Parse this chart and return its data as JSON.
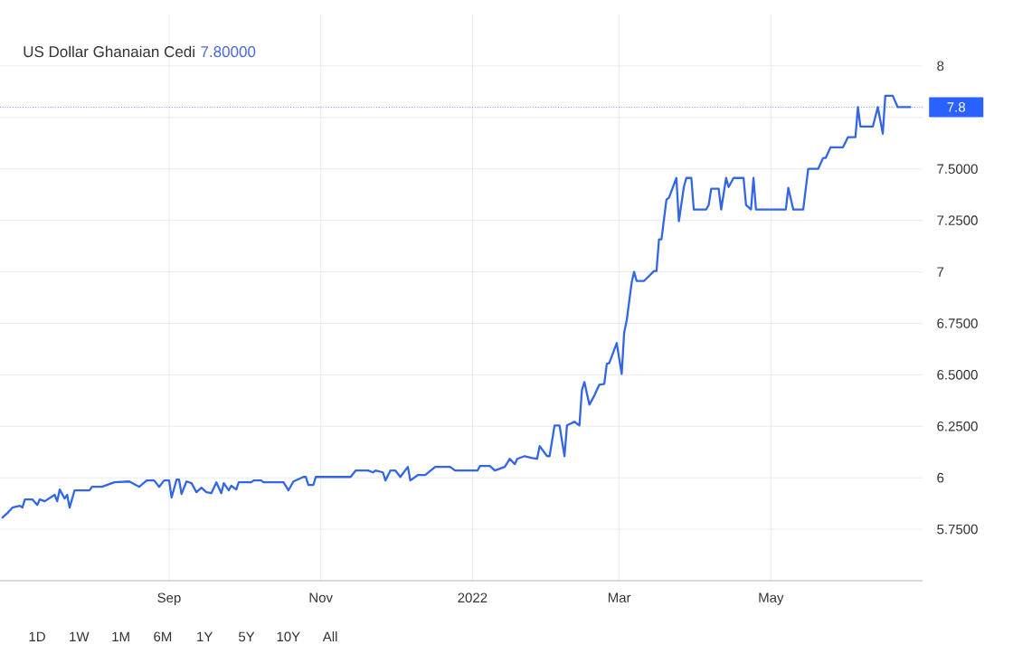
{
  "chart_data": {
    "type": "line",
    "title": "US Dollar Ghanaian Cedi",
    "subtitle": "7.80000",
    "annotations": [
      "1D",
      "1W",
      "1M",
      "6M",
      "1Y",
      "5Y",
      "10Y",
      "All"
    ],
    "x": [
      "2021-06-26",
      "2021-06-28",
      "2021-06-30",
      "2021-07-03",
      "2021-07-04",
      "2021-07-05",
      "2021-07-08",
      "2021-07-10",
      "2021-07-11",
      "2021-07-13",
      "2021-07-17",
      "2021-07-18",
      "2021-07-19",
      "2021-07-21",
      "2021-07-22",
      "2021-07-23",
      "2021-07-25",
      "2021-07-31",
      "2021-08-01",
      "2021-08-05",
      "2021-08-10",
      "2021-08-16",
      "2021-08-20",
      "2021-08-23",
      "2021-08-26",
      "2021-08-28",
      "2021-08-30",
      "2021-09-01",
      "2021-09-02",
      "2021-09-04",
      "2021-09-05",
      "2021-09-06",
      "2021-09-08",
      "2021-09-10",
      "2021-09-12",
      "2021-09-14",
      "2021-09-16",
      "2021-09-18",
      "2021-09-20",
      "2021-09-22",
      "2021-09-23",
      "2021-09-25",
      "2021-09-26",
      "2021-09-28",
      "2021-09-29",
      "2021-10-04",
      "2021-10-05",
      "2021-10-08",
      "2021-10-09",
      "2021-10-17",
      "2021-10-19",
      "2021-10-21",
      "2021-10-25",
      "2021-10-26",
      "2021-10-27",
      "2021-10-29",
      "2021-10-30",
      "2021-11-13",
      "2021-11-15",
      "2021-11-20",
      "2021-11-22",
      "2021-11-23",
      "2021-11-26",
      "2021-11-27",
      "2021-11-29",
      "2021-12-01",
      "2021-12-03",
      "2021-12-06",
      "2021-12-07",
      "2021-12-10",
      "2021-12-13",
      "2021-12-17",
      "2021-12-23",
      "2021-12-25",
      "2022-01-03",
      "2022-01-04",
      "2022-01-08",
      "2022-01-10",
      "2022-01-14",
      "2022-01-16",
      "2022-01-18",
      "2022-01-19",
      "2022-01-22",
      "2022-01-25",
      "2022-01-27",
      "2022-01-28",
      "2022-01-31",
      "2022-02-01",
      "2022-02-03",
      "2022-02-05",
      "2022-02-07",
      "2022-02-08",
      "2022-02-11",
      "2022-02-13",
      "2022-02-14",
      "2022-02-15",
      "2022-02-17",
      "2022-02-19",
      "2022-02-21",
      "2022-02-23",
      "2022-02-24",
      "2022-02-25",
      "2022-02-28",
      "2022-03-02",
      "2022-03-03",
      "2022-03-04",
      "2022-03-06",
      "2022-03-07",
      "2022-03-08",
      "2022-03-11",
      "2022-03-15",
      "2022-03-16",
      "2022-03-17",
      "2022-03-18",
      "2022-03-20",
      "2022-03-21",
      "2022-03-24",
      "2022-03-25",
      "2022-03-27",
      "2022-03-28",
      "2022-03-30",
      "2022-03-31",
      "2022-04-05",
      "2022-04-06",
      "2022-04-07",
      "2022-04-10",
      "2022-04-11",
      "2022-04-13",
      "2022-04-14",
      "2022-04-16",
      "2022-04-20",
      "2022-04-21",
      "2022-04-23",
      "2022-04-24",
      "2022-04-25",
      "2022-05-07",
      "2022-05-08",
      "2022-05-10",
      "2022-05-14",
      "2022-05-16",
      "2022-05-20",
      "2022-05-22",
      "2022-05-23",
      "2022-05-25",
      "2022-05-30",
      "2022-06-01",
      "2022-06-04",
      "2022-06-05",
      "2022-06-06",
      "2022-06-11",
      "2022-06-13",
      "2022-06-15",
      "2022-06-16",
      "2022-06-19",
      "2022-06-21",
      "2022-06-26"
    ],
    "values": [
      5.807,
      5.829,
      5.855,
      5.864,
      5.855,
      5.895,
      5.895,
      5.868,
      5.895,
      5.886,
      5.917,
      5.886,
      5.943,
      5.899,
      5.917,
      5.855,
      5.939,
      5.939,
      5.956,
      5.956,
      5.978,
      5.982,
      5.956,
      5.987,
      5.987,
      5.956,
      5.987,
      5.987,
      5.904,
      5.991,
      5.991,
      5.921,
      5.982,
      5.974,
      5.93,
      5.952,
      5.93,
      5.925,
      5.978,
      5.925,
      5.974,
      5.939,
      5.961,
      5.943,
      5.978,
      5.978,
      5.987,
      5.987,
      5.978,
      5.978,
      5.939,
      5.982,
      6.004,
      6.004,
      5.965,
      5.965,
      6.004,
      6.004,
      6.035,
      6.035,
      6.026,
      6.035,
      6.026,
      5.987,
      6.035,
      6.035,
      6.004,
      6.053,
      5.987,
      6.013,
      6.013,
      6.053,
      6.053,
      6.035,
      6.035,
      6.057,
      6.057,
      6.035,
      6.053,
      6.092,
      6.066,
      6.092,
      6.105,
      6.096,
      6.092,
      6.154,
      6.105,
      6.105,
      6.254,
      6.254,
      6.105,
      6.254,
      6.272,
      6.254,
      6.425,
      6.465,
      6.355,
      6.399,
      6.452,
      6.456,
      6.553,
      6.557,
      6.654,
      6.504,
      6.706,
      6.763,
      6.947,
      7.0,
      6.956,
      6.956,
      7.004,
      7.004,
      7.158,
      7.158,
      7.351,
      7.36,
      7.456,
      7.246,
      7.412,
      7.456,
      7.456,
      7.303,
      7.303,
      7.325,
      7.404,
      7.404,
      7.303,
      7.456,
      7.412,
      7.456,
      7.456,
      7.325,
      7.303,
      7.456,
      7.303,
      7.303,
      7.408,
      7.303,
      7.303,
      7.5,
      7.5,
      7.553,
      7.553,
      7.605,
      7.605,
      7.654,
      7.654,
      7.8,
      7.706,
      7.706,
      7.8,
      7.671,
      7.855,
      7.855,
      7.8,
      7.8
    ],
    "color": "#3366e6",
    "xlim": [
      "2021-06-25",
      "2022-07-01"
    ],
    "xticks": [
      {
        "value": "2021-09-01",
        "label": "Sep"
      },
      {
        "value": "2021-11-01",
        "label": "Nov"
      },
      {
        "value": "2022-01-01",
        "label": "2022"
      },
      {
        "value": "2022-03-01",
        "label": "Mar"
      },
      {
        "value": "2022-05-01",
        "label": "May"
      }
    ],
    "ylim": [
      5.5,
      8.25
    ],
    "yticks": [
      {
        "value": 5.75,
        "label": "5.7500"
      },
      6,
      {
        "value": 6.25,
        "label": "6.2500"
      },
      {
        "value": 6.5,
        "label": "6.5000"
      },
      {
        "value": 6.75,
        "label": "6.7500"
      },
      7,
      {
        "value": 7.25,
        "label": "7.2500"
      },
      {
        "value": 7.5,
        "label": "7.5000"
      },
      {
        "value": 7.75,
        "label": null
      },
      8
    ],
    "ref_lines": [
      {
        "axis": "y",
        "value": 7.8,
        "label": "7.8",
        "color": "#2962ff",
        "line_style": "dotted"
      }
    ],
    "grid": true,
    "marker": "none",
    "line_style": "solid"
  }
}
